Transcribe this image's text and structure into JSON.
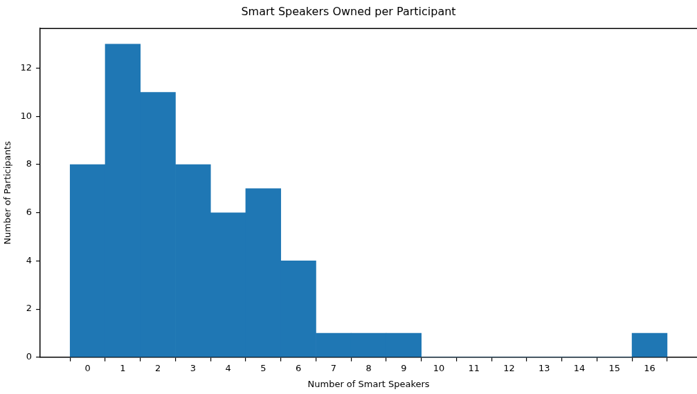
{
  "chart_data": {
    "type": "histogram",
    "title": "Smart Speakers Owned per Participant",
    "xlabel": "Number of Smart Speakers",
    "ylabel": "Number of Participants",
    "bins": [
      -0.5,
      0.5,
      1.5,
      2.5,
      3.5,
      4.5,
      5.5,
      6.5,
      7.5,
      8.5,
      9.5,
      10.5,
      11.5,
      12.5,
      13.5,
      14.5,
      15.5,
      16.5
    ],
    "values": [
      8,
      13,
      11,
      8,
      6,
      7,
      4,
      1,
      1,
      1,
      0,
      0,
      0,
      0,
      0,
      0,
      1
    ],
    "color": "#1f77b4",
    "xlim": [
      -1.35,
      17.35
    ],
    "xticks": [
      0,
      1,
      2,
      3,
      4,
      5,
      6,
      7,
      8,
      9,
      10,
      11,
      12,
      13,
      14,
      15,
      16
    ],
    "ylim": [
      0,
      13.65
    ],
    "yticks": [
      0,
      2,
      4,
      6,
      8,
      10,
      12
    ],
    "grid": false,
    "legend": false
  }
}
